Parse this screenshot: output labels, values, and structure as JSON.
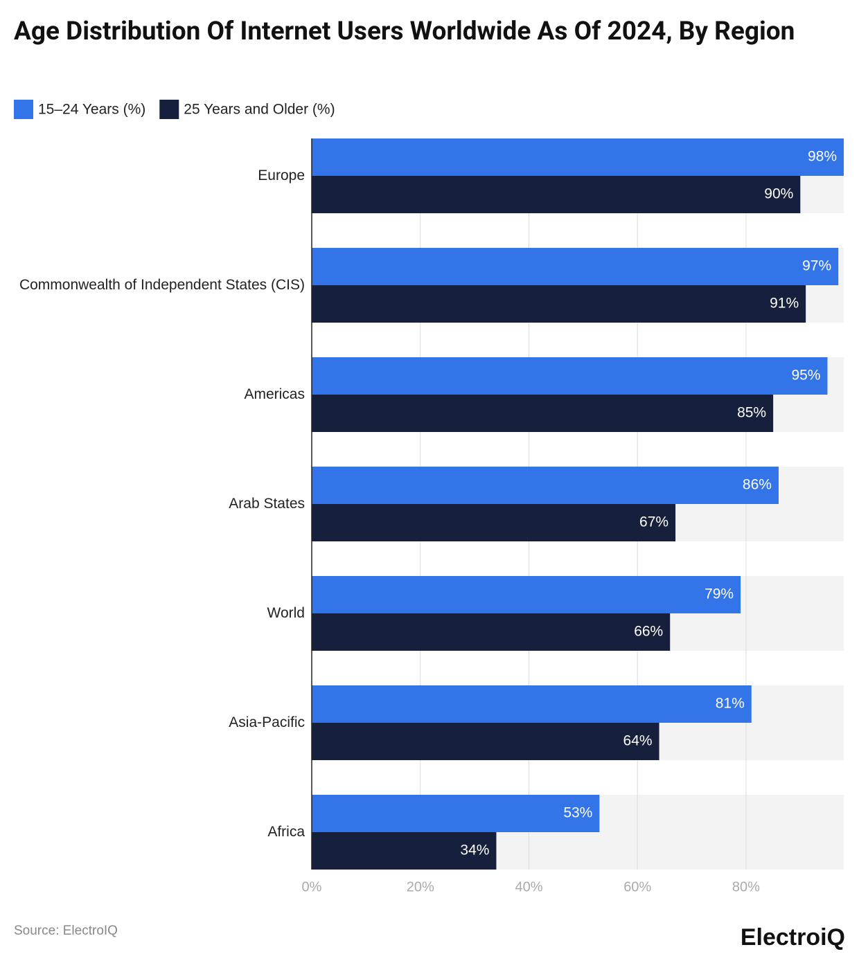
{
  "chart_data": {
    "type": "hbar",
    "title": "Age Distribution Of Internet Users Worldwide As Of 2024, By Region",
    "categories": [
      "Europe",
      "Commonwealth of Independent States (CIS)",
      "Americas",
      "Arab States",
      "World",
      "Asia-Pacific",
      "Africa"
    ],
    "series": [
      {
        "name": "15–24 Years (%)",
        "color": "#3375e8",
        "values": [
          98,
          97,
          95,
          86,
          79,
          81,
          53
        ],
        "value_labels": [
          "98%",
          "97%",
          "95%",
          "86%",
          "79%",
          "81%",
          "53%"
        ]
      },
      {
        "name": "25 Years and Older (%)",
        "color": "#161f3c",
        "values": [
          90,
          91,
          85,
          67,
          66,
          64,
          34
        ],
        "value_labels": [
          "90%",
          "91%",
          "85%",
          "67%",
          "66%",
          "64%",
          "34%"
        ]
      }
    ],
    "xlim": [
      0,
      98
    ],
    "xticks": [
      {
        "value": 0,
        "label": "0%"
      },
      {
        "value": 20,
        "label": "20%"
      },
      {
        "value": 40,
        "label": "40%"
      },
      {
        "value": 60,
        "label": "60%"
      },
      {
        "value": 80,
        "label": "80%"
      }
    ],
    "grid": true,
    "source": "Source: ElectroIQ",
    "brand": "ElectroiQ"
  }
}
